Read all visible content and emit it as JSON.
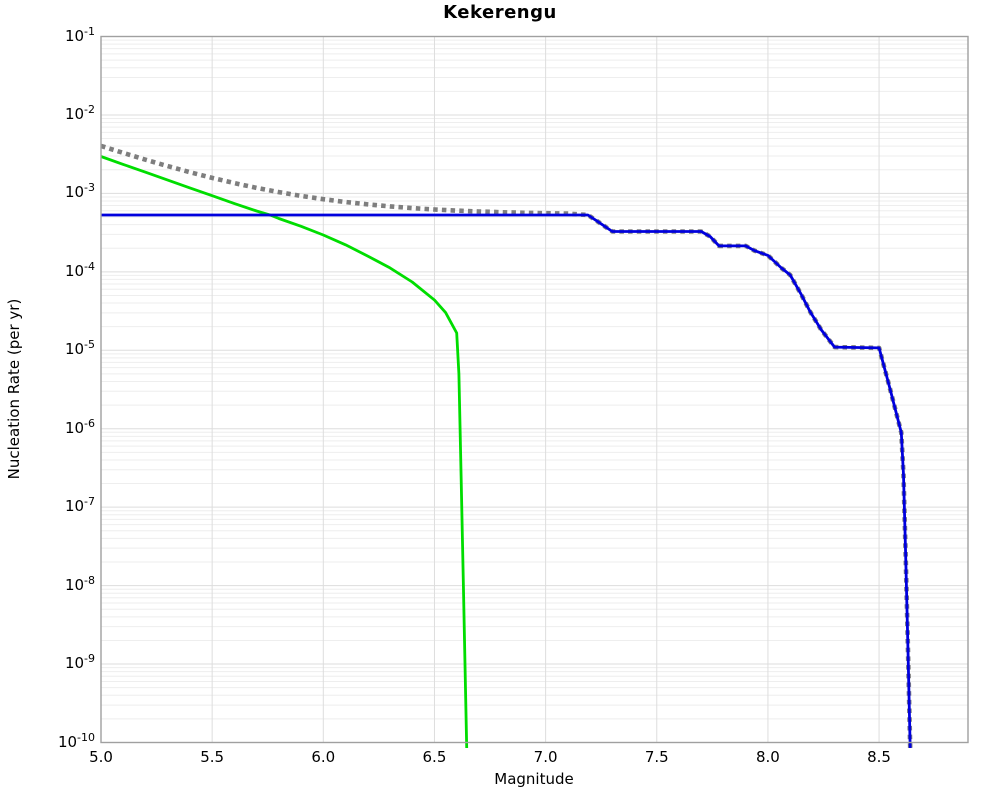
{
  "figure": {
    "title": "Kekerengu",
    "xlabel": "Magnitude",
    "ylabel": "Nucleation Rate (per yr)"
  },
  "chart_data": {
    "type": "line",
    "title": "Kekerengu",
    "xlabel": "Magnitude",
    "ylabel": "Nucleation Rate (per yr)",
    "x_range": [
      5.0,
      8.9
    ],
    "y_scale": "log10",
    "y_log_range": [
      -1,
      -10
    ],
    "grid": "major-every-0.5-mag-and-every-decade-plus-log-minor-lines",
    "legend": "none",
    "x_ticks": [
      "5.0",
      "5.5",
      "6.0",
      "6.5",
      "7.0",
      "7.5",
      "8.0",
      "8.5"
    ],
    "y_tick_base": "10",
    "y_tick_exponents": [
      "-1",
      "-2",
      "-3",
      "-4",
      "-5",
      "-6",
      "-7",
      "-8",
      "-9",
      "-10"
    ],
    "note": "points are [magnitude, log10(nucleation rate per yr)]",
    "series": [
      {
        "name": "gray-dotted-line",
        "color": "#7e7e7e",
        "style": "dotted",
        "width": 4.6,
        "points": [
          [
            5.0,
            -2.395
          ],
          [
            5.1,
            -2.484
          ],
          [
            5.2,
            -2.57
          ],
          [
            5.3,
            -2.652
          ],
          [
            5.4,
            -2.73
          ],
          [
            5.5,
            -2.802
          ],
          [
            5.6,
            -2.869
          ],
          [
            5.7,
            -2.93
          ],
          [
            5.8,
            -2.984
          ],
          [
            5.9,
            -3.032
          ],
          [
            6.0,
            -3.074
          ],
          [
            6.1,
            -3.11
          ],
          [
            6.2,
            -3.141
          ],
          [
            6.3,
            -3.166
          ],
          [
            6.4,
            -3.188
          ],
          [
            6.5,
            -3.205
          ],
          [
            6.6,
            -3.219
          ],
          [
            6.7,
            -3.231
          ],
          [
            6.8,
            -3.24
          ],
          [
            6.9,
            -3.247
          ],
          [
            7.0,
            -3.253
          ],
          [
            7.1,
            -3.258
          ],
          [
            7.19,
            -3.275
          ],
          [
            7.23,
            -3.35
          ],
          [
            7.3,
            -3.486
          ],
          [
            7.7,
            -3.486
          ],
          [
            7.74,
            -3.55
          ],
          [
            7.78,
            -3.67
          ],
          [
            7.9,
            -3.67
          ],
          [
            7.94,
            -3.73
          ],
          [
            8.0,
            -3.79
          ],
          [
            8.06,
            -3.95
          ],
          [
            8.1,
            -4.04
          ],
          [
            8.15,
            -4.29
          ],
          [
            8.19,
            -4.51
          ],
          [
            8.24,
            -4.74
          ],
          [
            8.3,
            -4.96
          ],
          [
            8.5,
            -4.97
          ],
          [
            8.55,
            -5.5
          ],
          [
            8.6,
            -6.05
          ],
          [
            8.61,
            -6.59
          ],
          [
            8.62,
            -7.68
          ],
          [
            8.63,
            -8.83
          ],
          [
            8.64,
            -10.07
          ]
        ]
      },
      {
        "name": "green-line",
        "color": "#00dd00",
        "style": "solid",
        "width": 2.8,
        "points": [
          [
            5.0,
            -2.53
          ],
          [
            5.1,
            -2.63
          ],
          [
            5.2,
            -2.73
          ],
          [
            5.3,
            -2.83
          ],
          [
            5.4,
            -2.93
          ],
          [
            5.5,
            -3.03
          ],
          [
            5.6,
            -3.13
          ],
          [
            5.7,
            -3.225
          ],
          [
            5.76,
            -3.275
          ],
          [
            5.8,
            -3.32
          ],
          [
            5.9,
            -3.42
          ],
          [
            6.0,
            -3.53
          ],
          [
            6.1,
            -3.655
          ],
          [
            6.2,
            -3.8
          ],
          [
            6.3,
            -3.95
          ],
          [
            6.4,
            -4.13
          ],
          [
            6.5,
            -4.36
          ],
          [
            6.55,
            -4.52
          ],
          [
            6.6,
            -4.78
          ],
          [
            6.61,
            -5.3
          ],
          [
            6.62,
            -6.6
          ],
          [
            6.63,
            -8.0
          ],
          [
            6.645,
            -10.07
          ]
        ]
      },
      {
        "name": "blue-line",
        "color": "#0000dd",
        "style": "solid",
        "width": 2.8,
        "points": [
          [
            5.0,
            -3.275
          ],
          [
            7.19,
            -3.275
          ],
          [
            7.23,
            -3.35
          ],
          [
            7.3,
            -3.486
          ],
          [
            7.7,
            -3.486
          ],
          [
            7.74,
            -3.55
          ],
          [
            7.78,
            -3.67
          ],
          [
            7.9,
            -3.67
          ],
          [
            7.94,
            -3.73
          ],
          [
            8.0,
            -3.79
          ],
          [
            8.06,
            -3.95
          ],
          [
            8.1,
            -4.04
          ],
          [
            8.15,
            -4.29
          ],
          [
            8.19,
            -4.51
          ],
          [
            8.24,
            -4.74
          ],
          [
            8.3,
            -4.96
          ],
          [
            8.5,
            -4.97
          ],
          [
            8.55,
            -5.5
          ],
          [
            8.6,
            -6.05
          ],
          [
            8.61,
            -6.59
          ],
          [
            8.62,
            -7.68
          ],
          [
            8.63,
            -8.83
          ],
          [
            8.64,
            -10.07
          ]
        ]
      }
    ],
    "colors": {
      "frame": "#a0a0a0",
      "grid_major": "#dddddd",
      "grid_minor": "#eeeeee",
      "background": "#ffffff"
    }
  }
}
